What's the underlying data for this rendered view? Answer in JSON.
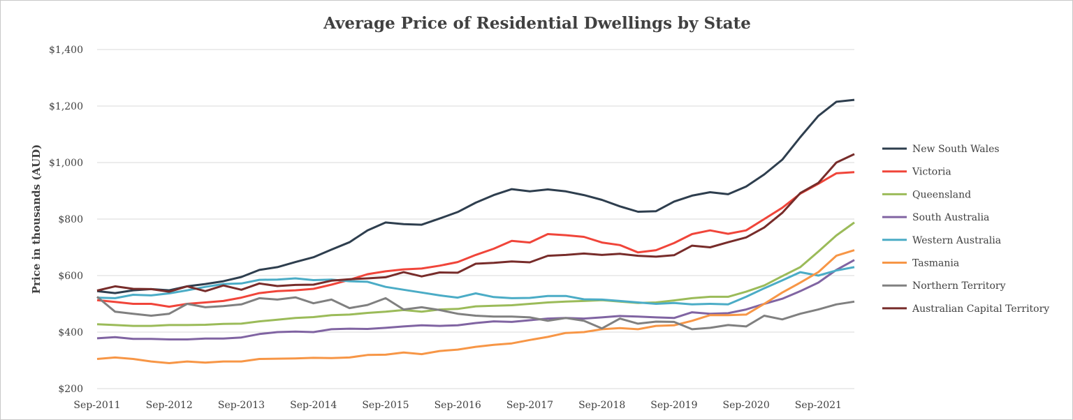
{
  "chart_data": {
    "type": "line",
    "title": "Average Price of Residential Dwellings by State",
    "xlabel": "",
    "ylabel": "Price in thousands (AUD)",
    "ylim": [
      200,
      1400
    ],
    "yticks": [
      200,
      400,
      600,
      800,
      1000,
      1200,
      1400
    ],
    "ytick_labels": [
      "$200",
      "$400",
      "$600",
      "$800",
      "$1,000",
      "$1,200",
      "$1,400"
    ],
    "x_start": "Sep-2011",
    "x_frequency": "quarterly",
    "xtick_labels": [
      "Sep-2011",
      "Sep-2012",
      "Sep-2013",
      "Sep-2014",
      "Sep-2015",
      "Sep-2016",
      "Sep-2017",
      "Sep-2018",
      "Sep-2019",
      "Sep-2020",
      "Sep-2021"
    ],
    "grid": "horizontal",
    "legend_position": "right",
    "series": [
      {
        "name": "New South Wales",
        "color": "#2e3e4e",
        "values": [
          545,
          538,
          548,
          552,
          548,
          562,
          570,
          580,
          595,
          620,
          630,
          648,
          665,
          692,
          718,
          760,
          788,
          782,
          780,
          802,
          825,
          858,
          885,
          906,
          898,
          905,
          898,
          885,
          868,
          845,
          826,
          828,
          862,
          883,
          895,
          888,
          915,
          958,
          1010,
          1090,
          1165,
          1215,
          1222
        ]
      },
      {
        "name": "Victoria",
        "color": "#f0453a",
        "values": [
          513,
          507,
          500,
          500,
          490,
          500,
          505,
          510,
          522,
          538,
          545,
          548,
          553,
          568,
          585,
          605,
          615,
          622,
          625,
          635,
          648,
          673,
          695,
          723,
          717,
          747,
          743,
          737,
          717,
          708,
          682,
          690,
          715,
          747,
          760,
          748,
          760,
          800,
          840,
          890,
          925,
          962,
          966
        ]
      },
      {
        "name": "Queensland",
        "color": "#9bbb59",
        "values": [
          428,
          425,
          422,
          422,
          425,
          425,
          426,
          429,
          430,
          438,
          444,
          450,
          453,
          460,
          462,
          468,
          472,
          478,
          472,
          480,
          482,
          491,
          493,
          495,
          500,
          505,
          508,
          510,
          513,
          508,
          503,
          505,
          512,
          520,
          525,
          525,
          543,
          565,
          598,
          630,
          685,
          742,
          788
        ]
      },
      {
        "name": "South Australia",
        "color": "#8064a2",
        "values": [
          378,
          382,
          376,
          376,
          374,
          374,
          377,
          377,
          381,
          393,
          400,
          402,
          400,
          410,
          412,
          411,
          415,
          420,
          424,
          422,
          424,
          432,
          438,
          436,
          442,
          448,
          450,
          448,
          452,
          457,
          455,
          452,
          450,
          470,
          465,
          467,
          480,
          500,
          518,
          545,
          575,
          620,
          655
        ]
      },
      {
        "name": "Western Australia",
        "color": "#4bacc6",
        "values": [
          522,
          520,
          532,
          530,
          537,
          548,
          560,
          570,
          572,
          585,
          586,
          590,
          584,
          586,
          580,
          578,
          560,
          550,
          540,
          530,
          522,
          537,
          524,
          520,
          521,
          528,
          528,
          516,
          515,
          510,
          505,
          500,
          503,
          498,
          500,
          498,
          525,
          555,
          583,
          612,
          600,
          618,
          630
        ]
      },
      {
        "name": "Tasmania",
        "color": "#f79646",
        "values": [
          305,
          310,
          305,
          296,
          290,
          296,
          292,
          296,
          296,
          305,
          306,
          307,
          309,
          308,
          310,
          319,
          320,
          328,
          322,
          333,
          338,
          348,
          355,
          360,
          372,
          383,
          397,
          400,
          410,
          414,
          410,
          422,
          424,
          440,
          460,
          460,
          462,
          500,
          540,
          575,
          612,
          670,
          690
        ]
      },
      {
        "name": "Northern Territory",
        "color": "#808080",
        "values": [
          525,
          472,
          465,
          458,
          465,
          500,
          488,
          492,
          498,
          520,
          515,
          523,
          502,
          515,
          485,
          496,
          520,
          480,
          488,
          478,
          465,
          458,
          455,
          455,
          452,
          440,
          450,
          440,
          413,
          448,
          430,
          437,
          436,
          410,
          415,
          425,
          420,
          458,
          445,
          465,
          480,
          498,
          508
        ]
      },
      {
        "name": "Australian Capital Territory",
        "color": "#772c2a",
        "values": [
          547,
          562,
          553,
          552,
          543,
          562,
          545,
          565,
          550,
          572,
          563,
          567,
          568,
          582,
          587,
          590,
          594,
          612,
          597,
          611,
          610,
          642,
          645,
          650,
          647,
          670,
          673,
          678,
          673,
          677,
          670,
          667,
          672,
          706,
          700,
          718,
          735,
          770,
          822,
          892,
          928,
          1000,
          1030
        ]
      }
    ]
  }
}
